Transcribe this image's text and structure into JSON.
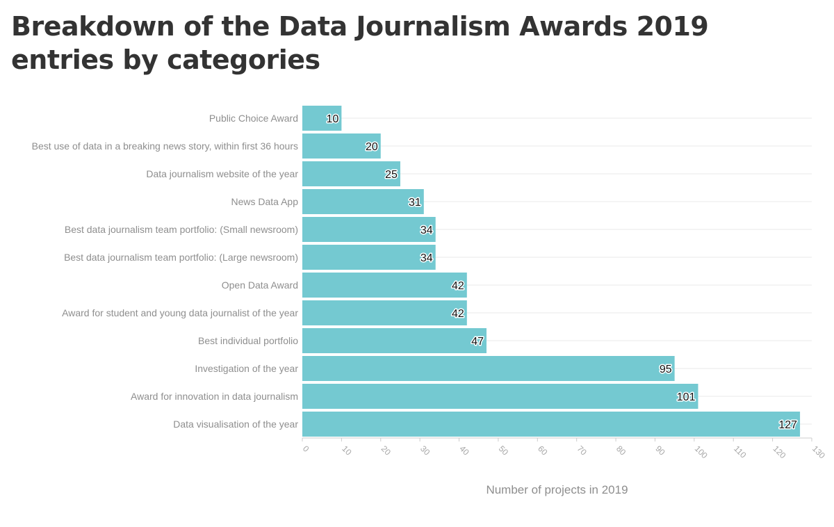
{
  "chart_data": {
    "type": "bar",
    "orientation": "horizontal",
    "title": "Breakdown of the Data Journalism Awards 2019 entries by categories",
    "xlabel": "Number of projects in 2019",
    "ylabel": "",
    "xlim": [
      0,
      130
    ],
    "x_ticks": [
      "0",
      "10",
      "20",
      "30",
      "40",
      "50",
      "60",
      "70",
      "80",
      "90",
      "100",
      "110",
      "120",
      "130"
    ],
    "categories": [
      "Public Choice Award",
      "Best use of data in a breaking news story, within first 36 hours",
      "Data journalism website of the year",
      "News Data App",
      "Best data journalism team portfolio: (Small newsroom)",
      "Best data journalism team portfolio: (Large newsroom)",
      "Open Data Award",
      "Award for student and young data journalist of the year",
      "Best individual portfolio",
      "Investigation of the year",
      "Award for innovation in data journalism",
      "Data visualisation of the year"
    ],
    "values": [
      10,
      20,
      25,
      31,
      34,
      34,
      42,
      42,
      47,
      95,
      101,
      127
    ],
    "bar_color": "#74c9d1",
    "grid": true,
    "data_labels": true
  }
}
